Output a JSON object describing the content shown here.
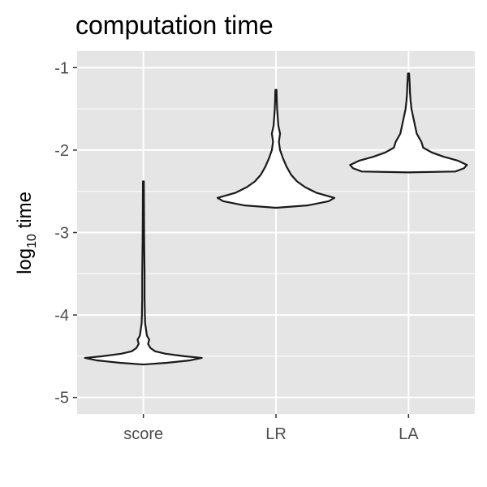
{
  "chart_data": {
    "type": "violin",
    "title": "computation time",
    "ylabel": {
      "base": "log",
      "subscript": "10",
      "rest": " time"
    },
    "categories": [
      "score",
      "LR",
      "LA"
    ],
    "y_ticks": [
      -1,
      -2,
      -3,
      -4,
      -5
    ],
    "y_tick_labels": [
      "-1",
      "-2",
      "-3",
      "-4",
      "-5"
    ],
    "ylim": [
      -5.2,
      -0.8
    ],
    "grid": true,
    "background_color": "#e5e5e5",
    "grid_color": "#ffffff",
    "outline_color": "#1a1a1a",
    "fill_color": "#ffffff",
    "series": [
      {
        "category": "score",
        "profile": [
          [
            -4.6,
            0.0
          ],
          [
            -4.58,
            0.4
          ],
          [
            -4.55,
            0.8
          ],
          [
            -4.52,
            1.0
          ],
          [
            -4.5,
            0.7
          ],
          [
            -4.47,
            0.38
          ],
          [
            -4.44,
            0.2
          ],
          [
            -4.4,
            0.12
          ],
          [
            -4.35,
            0.08
          ],
          [
            -4.3,
            0.1
          ],
          [
            -4.25,
            0.06
          ],
          [
            -4.2,
            0.05
          ],
          [
            -4.1,
            0.03
          ],
          [
            -4.0,
            0.025
          ],
          [
            -3.8,
            0.02
          ],
          [
            -3.5,
            0.02
          ],
          [
            -3.2,
            0.015
          ],
          [
            -3.0,
            0.012
          ],
          [
            -2.7,
            0.01
          ],
          [
            -2.38,
            0.008
          ]
        ]
      },
      {
        "category": "LR",
        "profile": [
          [
            -2.7,
            0.0
          ],
          [
            -2.67,
            0.55
          ],
          [
            -2.62,
            0.9
          ],
          [
            -2.58,
            1.0
          ],
          [
            -2.52,
            0.7
          ],
          [
            -2.45,
            0.5
          ],
          [
            -2.38,
            0.36
          ],
          [
            -2.3,
            0.26
          ],
          [
            -2.2,
            0.18
          ],
          [
            -2.1,
            0.12
          ],
          [
            -2.0,
            0.07
          ],
          [
            -1.9,
            0.05
          ],
          [
            -1.8,
            0.07
          ],
          [
            -1.7,
            0.04
          ],
          [
            -1.6,
            0.03
          ],
          [
            -1.5,
            0.02
          ],
          [
            -1.4,
            0.015
          ],
          [
            -1.27,
            0.01
          ]
        ]
      },
      {
        "category": "LA",
        "profile": [
          [
            -2.27,
            0.0
          ],
          [
            -2.26,
            0.8
          ],
          [
            -2.22,
            0.95
          ],
          [
            -2.18,
            1.0
          ],
          [
            -2.13,
            0.85
          ],
          [
            -2.08,
            0.6
          ],
          [
            -2.03,
            0.4
          ],
          [
            -1.97,
            0.25
          ],
          [
            -1.9,
            0.22
          ],
          [
            -1.85,
            0.18
          ],
          [
            -1.8,
            0.14
          ],
          [
            -1.7,
            0.11
          ],
          [
            -1.6,
            0.08
          ],
          [
            -1.5,
            0.05
          ],
          [
            -1.4,
            0.035
          ],
          [
            -1.3,
            0.025
          ],
          [
            -1.2,
            0.02
          ],
          [
            -1.07,
            0.01
          ]
        ]
      }
    ]
  }
}
